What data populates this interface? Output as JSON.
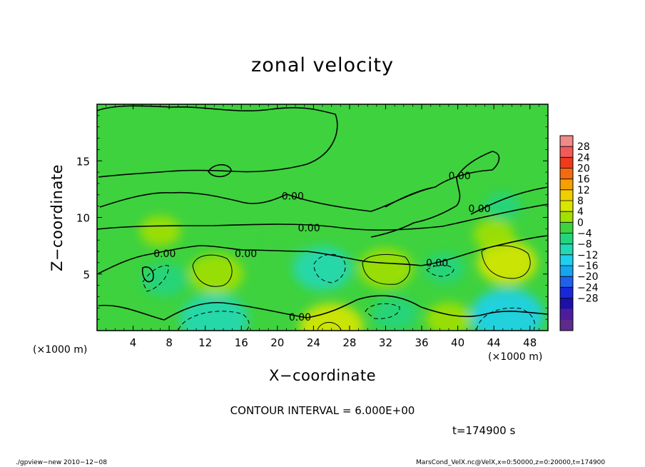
{
  "chart_data": {
    "type": "heatmap",
    "title": "zonal velocity",
    "xlabel": "X−coordinate",
    "ylabel": "Z−coordinate",
    "x_unit_left": "(×1000 m)",
    "x_unit_right": "(×1000 m)",
    "xlim": [
      0,
      50
    ],
    "ylim": [
      0,
      20
    ],
    "x_ticks": [
      4,
      8,
      12,
      16,
      20,
      24,
      28,
      32,
      36,
      40,
      44,
      48
    ],
    "y_ticks": [
      5,
      10,
      15
    ],
    "contour_interval_text": "CONTOUR INTERVAL = 6.000E+00",
    "contour_labels": [
      {
        "text": "0.00",
        "x": 7.5,
        "y": 6.8
      },
      {
        "text": "0.00",
        "x": 16.5,
        "y": 6.8
      },
      {
        "text": "0.00",
        "x": 23.5,
        "y": 9.1
      },
      {
        "text": "0.00",
        "x": 21.7,
        "y": 11.9
      },
      {
        "text": "0.00",
        "x": 37.7,
        "y": 6.0
      },
      {
        "text": "0.00",
        "x": 42.4,
        "y": 10.8
      },
      {
        "text": "0.00",
        "x": 40.2,
        "y": 13.7
      },
      {
        "text": "0.00",
        "x": 22.5,
        "y": 1.2
      }
    ],
    "features": [
      {
        "kind": "positive",
        "x": 13.2,
        "y": 5.0,
        "value": 6
      },
      {
        "kind": "positive",
        "x": 32.0,
        "y": 5.5,
        "value": 6
      },
      {
        "kind": "positive",
        "x": 45.5,
        "y": 6.0,
        "value": 7
      },
      {
        "kind": "positive",
        "x": 26.0,
        "y": 0.3,
        "value": 8
      },
      {
        "kind": "positive",
        "x": 39.0,
        "y": 1.0,
        "value": 4
      },
      {
        "kind": "negative",
        "x": 25.0,
        "y": 5.5,
        "value": -7
      },
      {
        "kind": "negative",
        "x": 13.0,
        "y": 1.0,
        "value": -9
      },
      {
        "kind": "negative",
        "x": 45.5,
        "y": 1.3,
        "value": -10
      },
      {
        "kind": "negative",
        "x": 33.0,
        "y": 1.5,
        "value": -4
      },
      {
        "kind": "negative",
        "x": 7.5,
        "y": 4.5,
        "value": -4
      },
      {
        "kind": "negative",
        "x": 38.5,
        "y": 5.5,
        "value": -3
      },
      {
        "kind": "negative",
        "x": 45.0,
        "y": 11.0,
        "value": -2
      },
      {
        "kind": "negative",
        "x": 20.5,
        "y": 7.5,
        "value": -1
      },
      {
        "kind": "positive",
        "x": 7.0,
        "y": 8.8,
        "value": 3
      },
      {
        "kind": "positive",
        "x": 44.0,
        "y": 8.5,
        "value": 3
      }
    ],
    "colorbar": {
      "labels": [
        "28",
        "24",
        "20",
        "16",
        "12",
        "8",
        "4",
        "0",
        "−4",
        "−8",
        "−12",
        "−16",
        "−20",
        "−24",
        "−28"
      ],
      "colors": [
        "#f08a8a",
        "#f25a5a",
        "#f03a1c",
        "#f56a10",
        "#f5a000",
        "#f0cf00",
        "#d9e600",
        "#a2e000",
        "#3ed23e",
        "#26d47e",
        "#24d8b4",
        "#1ed0ec",
        "#14a6ee",
        "#2060ee",
        "#1828d6",
        "#1c10a8",
        "#4c1c9c",
        "#5e2a8c"
      ]
    }
  },
  "footer": {
    "time": "t=174900 s",
    "left": "./gpview−new  2010−12−08",
    "right": "MarsCond_VelX.nc@VelX,x=0:50000,z=0:20000,t=174900"
  }
}
